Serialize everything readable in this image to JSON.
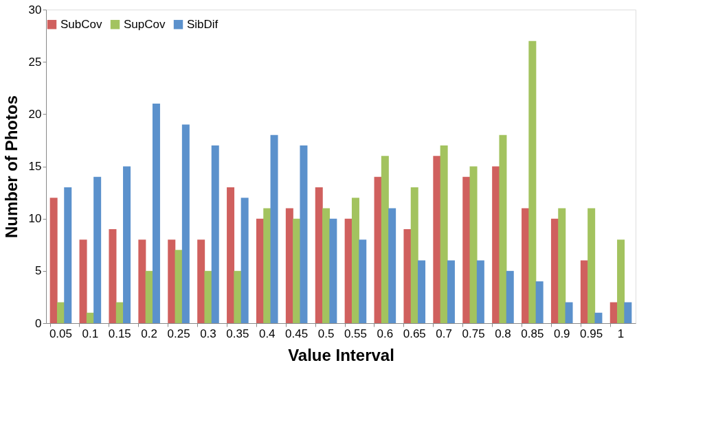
{
  "chart_data": {
    "type": "bar",
    "xlabel": "Value Interval",
    "ylabel": "Number of Photos",
    "categories": [
      "0.05",
      "0.1",
      "0.15",
      "0.2",
      "0.25",
      "0.3",
      "0.35",
      "0.4",
      "0.45",
      "0.5",
      "0.55",
      "0.6",
      "0.65",
      "0.7",
      "0.75",
      "0.8",
      "0.85",
      "0.9",
      "0.95",
      "1"
    ],
    "series": [
      {
        "name": "SubCov",
        "color": "#d0605e",
        "values": [
          12,
          8,
          9,
          8,
          8,
          8,
          13,
          10,
          11,
          13,
          10,
          14,
          9,
          16,
          14,
          15,
          11,
          10,
          6,
          2
        ]
      },
      {
        "name": "SupCov",
        "color": "#a3c35f",
        "values": [
          2,
          1,
          2,
          5,
          7,
          5,
          5,
          11,
          10,
          11,
          12,
          16,
          13,
          17,
          15,
          18,
          27,
          11,
          11,
          8
        ]
      },
      {
        "name": "SibDif",
        "color": "#5b91cc",
        "values": [
          13,
          14,
          15,
          21,
          19,
          17,
          12,
          18,
          17,
          10,
          8,
          11,
          6,
          6,
          6,
          5,
          4,
          2,
          1,
          2
        ]
      }
    ],
    "ylim": [
      0,
      30
    ],
    "yticks": [
      0,
      5,
      10,
      15,
      20,
      25,
      30
    ],
    "grid": false,
    "legend": "top"
  }
}
